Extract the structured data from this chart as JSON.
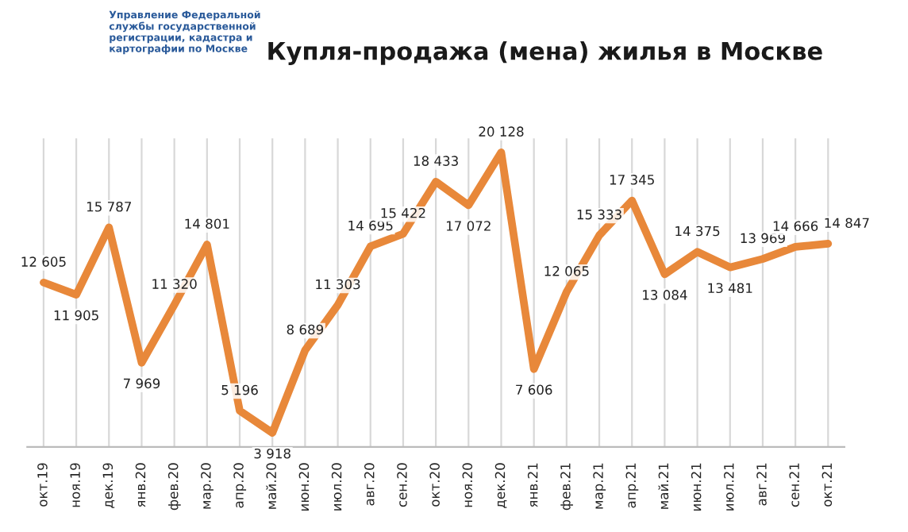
{
  "chart_data": {
    "type": "line",
    "title": "Купля-продажа (мена) жилья в Москве",
    "annotations": [
      "Управление Федеральной\nслужбы государственной\nрегистрации, кадастра и\nкартографии по Москве"
    ],
    "categories": [
      "окт.19",
      "ноя.19",
      "дек.19",
      "янв.20",
      "фев.20",
      "мар.20",
      "апр.20",
      "май.20",
      "июн.20",
      "июл.20",
      "авг.20",
      "сен.20",
      "окт.20",
      "ноя.20",
      "дек.20",
      "янв.21",
      "фев.21",
      "мар.21",
      "апр.21",
      "май.21",
      "июн.21",
      "июл.21",
      "авг.21",
      "сен.21",
      "окт.21"
    ],
    "series": [
      {
        "color": "#e8883a",
        "values": [
          12605,
          11905,
          15787,
          7969,
          11320,
          14801,
          5196,
          3918,
          8689,
          11303,
          14695,
          15422,
          18433,
          17072,
          20128,
          7606,
          12065,
          15333,
          17345,
          13084,
          14375,
          13481,
          13969,
          14666,
          14847
        ],
        "value_labels": [
          "12 605",
          "11 905",
          "15 787",
          "7 969",
          "11 320",
          "14 801",
          "5 196",
          "3 918",
          "8 689",
          "11 303",
          "14 695",
          "15 422",
          "18 433",
          "17 072",
          "20 128",
          "7 606",
          "12 065",
          "15 333",
          "17 345",
          "13 084",
          "14 375",
          "13 481",
          "13 969",
          "14 666",
          "14 847"
        ]
      }
    ],
    "grid": "x",
    "marker": "none",
    "line_style": "solid",
    "legend": false
  }
}
